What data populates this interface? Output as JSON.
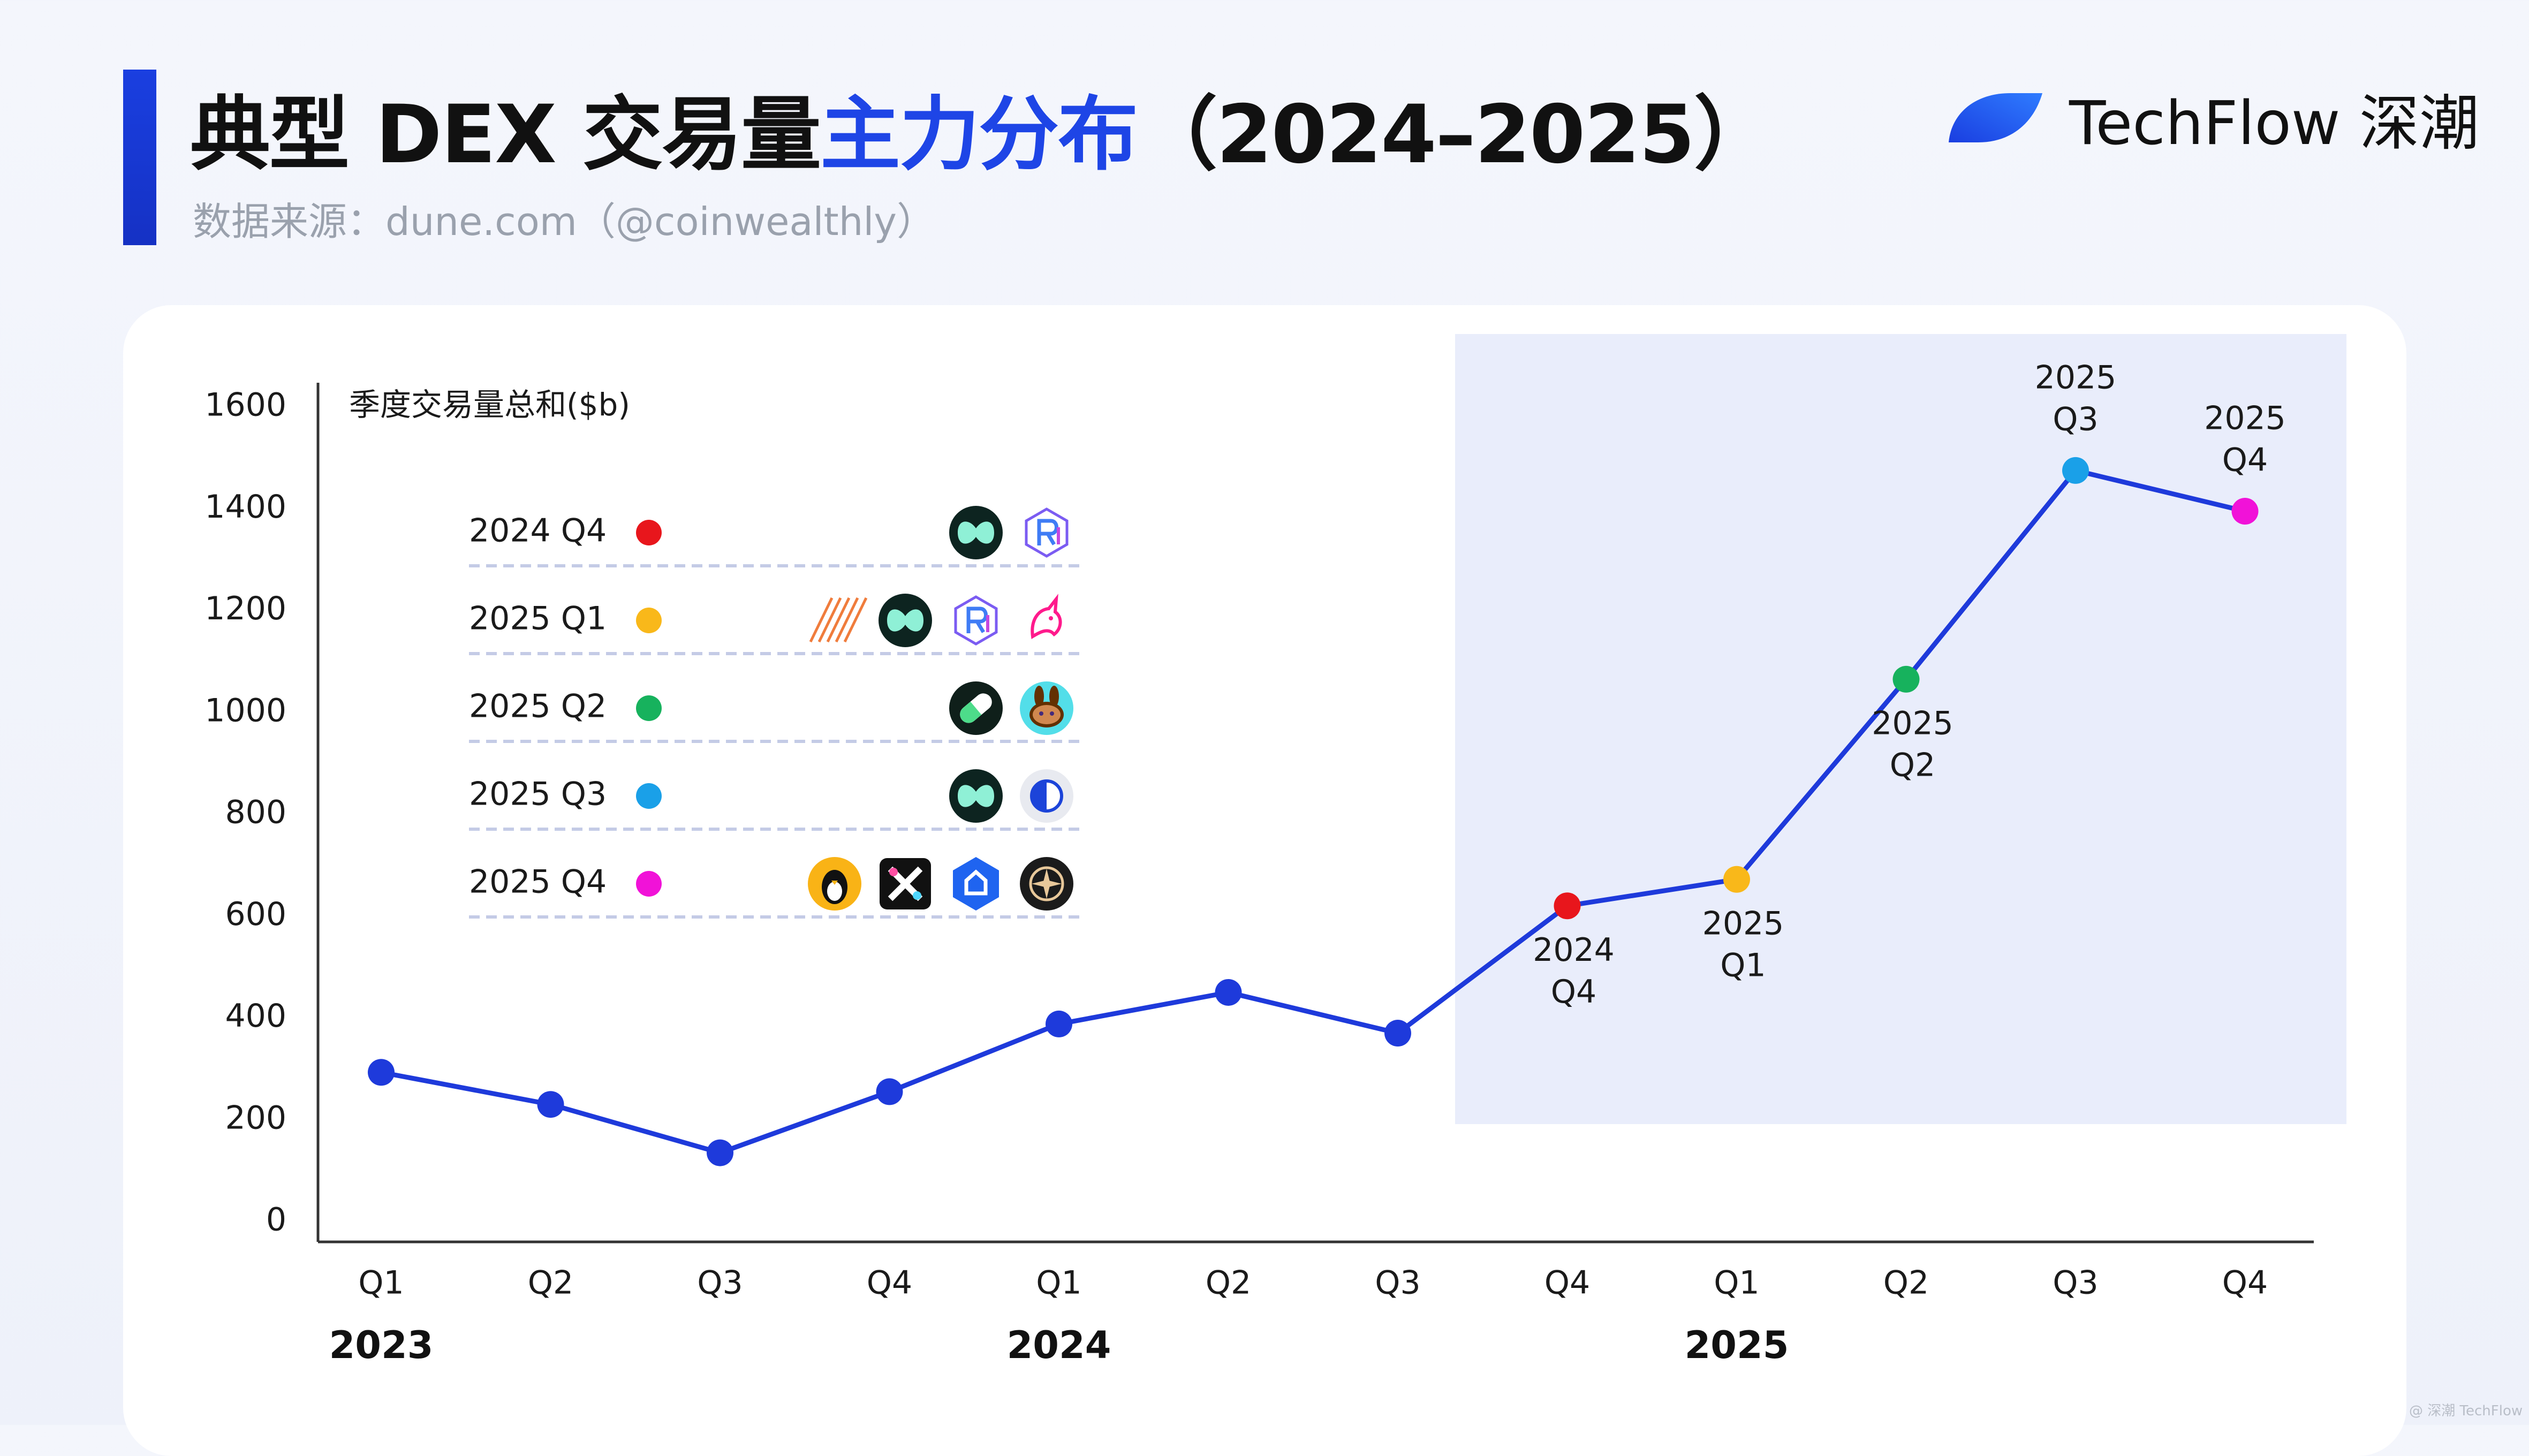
{
  "header": {
    "title_main": "典型 DEX 交易量",
    "title_accent": "主力分布",
    "title_years": "（2024–2025）",
    "subtitle": "数据来源：dune.com（@coinwealthly）"
  },
  "brand": {
    "name": "TechFlow 深潮",
    "icon": "techflow-wave-logo"
  },
  "credit": "@ 深潮 TechFlow",
  "colors": {
    "line": "#1e3adb",
    "highlight_band": "#e9edfb",
    "axis": "#333333",
    "legend_divider": "#c4cbe6",
    "2024 Q4": "#e8161c",
    "2025 Q1": "#f9b81a",
    "2025 Q2": "#17b25d",
    "2025 Q3": "#1aa0e8",
    "2025 Q4": "#f112d8"
  },
  "chart_data": {
    "type": "line",
    "ylabel": "季度交易量总和($b)",
    "ylim": [
      0,
      1600
    ],
    "yticks": [
      0,
      200,
      400,
      600,
      800,
      1000,
      1200,
      1400,
      1600
    ],
    "x": [
      "Q1",
      "Q2",
      "Q3",
      "Q4",
      "Q1",
      "Q2",
      "Q3",
      "Q4",
      "Q1",
      "Q2",
      "Q3",
      "Q4"
    ],
    "year_labels": [
      {
        "label": "2023",
        "at": 0
      },
      {
        "label": "2024",
        "at": 4
      },
      {
        "label": "2025",
        "at": 8
      }
    ],
    "series": [
      {
        "values": [
          293,
          230,
          135,
          255,
          388,
          450,
          370,
          620,
          672,
          1065,
          1475,
          1395
        ]
      }
    ],
    "highlight_from": 7,
    "highlight_to": 11,
    "point_annotations": [
      {
        "index": 7,
        "lines": [
          "2024",
          "Q4"
        ],
        "position": "below"
      },
      {
        "index": 8,
        "lines": [
          "2025",
          "Q1"
        ],
        "position": "below"
      },
      {
        "index": 9,
        "lines": [
          "2025",
          "Q2"
        ],
        "position": "below"
      },
      {
        "index": 10,
        "lines": [
          "2025",
          "Q3"
        ],
        "position": "above"
      },
      {
        "index": 11,
        "lines": [
          "2025",
          "Q4"
        ],
        "position": "above"
      }
    ],
    "grid": false,
    "legend": {
      "placement": "top-left",
      "rows": [
        {
          "label": "2024 Q4",
          "index": 7,
          "icons": [
            "hyperliquid-icon",
            "raydium-icon"
          ]
        },
        {
          "label": "2025 Q1",
          "index": 8,
          "icons": [
            "pumpswap-stripes-icon",
            "hyperliquid-icon",
            "raydium-icon",
            "uniswap-unicorn-icon"
          ]
        },
        {
          "label": "2025 Q2",
          "index": 9,
          "icons": [
            "pill-icon",
            "pancakeswap-bunny-icon"
          ]
        },
        {
          "label": "2025 Q3",
          "index": 10,
          "icons": [
            "hyperliquid-icon",
            "half-circle-icon"
          ]
        },
        {
          "label": "2025 Q4",
          "index": 11,
          "icons": [
            "aster-penguin-icon",
            "cross-x-icon",
            "blue-hexagon-icon",
            "compass-icon"
          ]
        }
      ]
    }
  }
}
